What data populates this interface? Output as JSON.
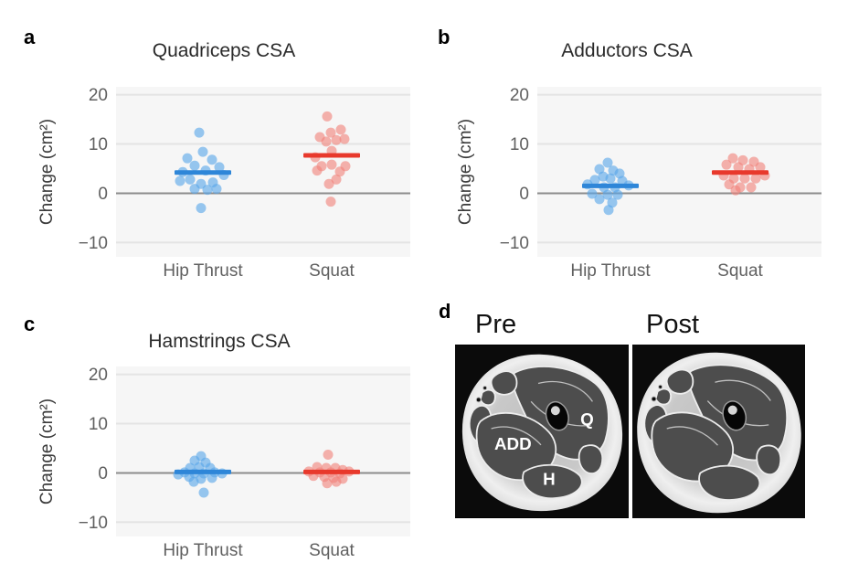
{
  "colors": {
    "hip_thrust_bar": "#2e86d8",
    "hip_thrust_point": "#58a6e8",
    "squat_bar": "#e8392c",
    "squat_point": "#f0837a",
    "panel_background": "#f6f6f6",
    "gridline": "#e4e4e4",
    "zero_line": "#8c8c8c",
    "title_text": "#2b2b2b",
    "axis_text": "#606060"
  },
  "chart_data": [
    {
      "id": "a",
      "letter": "a",
      "type": "scatter",
      "subtype": "jitter-strip-with-mean-bar",
      "title": "Quadriceps CSA",
      "ylabel": "Change (cm²)",
      "categories": [
        "Hip Thrust",
        "Squat"
      ],
      "yticks": [
        -10,
        0,
        10,
        20
      ],
      "ylim": [
        -12.9,
        21.6
      ],
      "grid": true,
      "series": [
        {
          "name": "Hip Thrust",
          "bar_color": "#2e86d8",
          "point_color": "#58a6e8",
          "mean": 4.2,
          "points": [
            [
              -4,
              12.3
            ],
            [
              0,
              8.4
            ],
            [
              -17,
              7.1
            ],
            [
              10,
              6.8
            ],
            [
              18,
              5.3
            ],
            [
              -9,
              5.6
            ],
            [
              -22,
              4.3
            ],
            [
              3,
              4.6
            ],
            [
              23,
              3.7
            ],
            [
              -14,
              2.8
            ],
            [
              11,
              2.2
            ],
            [
              -25,
              2.5
            ],
            [
              -2,
              1.9
            ],
            [
              -9,
              0.9
            ],
            [
              5,
              0.7
            ],
            [
              15,
              0.9
            ],
            [
              -2,
              -3.0
            ]
          ]
        },
        {
          "name": "Squat",
          "bar_color": "#e8392c",
          "point_color": "#f0837a",
          "mean": 7.7,
          "points": [
            [
              -5,
              15.6
            ],
            [
              10,
              12.9
            ],
            [
              -1,
              12.3
            ],
            [
              -13,
              11.4
            ],
            [
              14,
              11.0
            ],
            [
              5,
              10.8
            ],
            [
              -6,
              10.5
            ],
            [
              0,
              8.6
            ],
            [
              -18,
              7.3
            ],
            [
              0,
              5.8
            ],
            [
              -11,
              5.5
            ],
            [
              15,
              5.5
            ],
            [
              -16,
              4.6
            ],
            [
              9,
              4.4
            ],
            [
              5,
              2.8
            ],
            [
              -3,
              1.9
            ],
            [
              -1,
              -1.7
            ]
          ]
        }
      ]
    },
    {
      "id": "b",
      "letter": "b",
      "type": "scatter",
      "subtype": "jitter-strip-with-mean-bar",
      "title": "Adductors CSA",
      "ylabel": "Change (cm²)",
      "categories": [
        "Hip Thrust",
        "Squat"
      ],
      "yticks": [
        -10,
        0,
        10,
        20
      ],
      "ylim": [
        -12.9,
        21.6
      ],
      "grid": true,
      "series": [
        {
          "name": "Hip Thrust",
          "bar_color": "#2e86d8",
          "point_color": "#58a6e8",
          "mean": 1.5,
          "points": [
            [
              -3,
              6.2
            ],
            [
              -12,
              4.9
            ],
            [
              3,
              4.6
            ],
            [
              10,
              4.0
            ],
            [
              -8,
              3.4
            ],
            [
              0,
              3.0
            ],
            [
              -17,
              2.7
            ],
            [
              13,
              2.5
            ],
            [
              -25,
              1.8
            ],
            [
              20,
              1.6
            ],
            [
              -7,
              1.2
            ],
            [
              5,
              1.2
            ],
            [
              -20,
              -0.1
            ],
            [
              -3,
              -0.3
            ],
            [
              8,
              -0.3
            ],
            [
              -12,
              -1.2
            ],
            [
              2,
              -1.9
            ],
            [
              -2,
              -3.4
            ]
          ]
        },
        {
          "name": "Squat",
          "bar_color": "#e8392c",
          "point_color": "#f0837a",
          "mean": 4.2,
          "points": [
            [
              -8,
              7.1
            ],
            [
              3,
              6.7
            ],
            [
              15,
              6.4
            ],
            [
              -15,
              5.8
            ],
            [
              -2,
              5.3
            ],
            [
              22,
              5.3
            ],
            [
              10,
              4.9
            ],
            [
              -18,
              3.6
            ],
            [
              27,
              3.6
            ],
            [
              -7,
              3.0
            ],
            [
              5,
              3.0
            ],
            [
              17,
              3.0
            ],
            [
              -12,
              1.8
            ],
            [
              0,
              1.2
            ],
            [
              12,
              1.2
            ],
            [
              -5,
              0.6
            ]
          ]
        }
      ]
    },
    {
      "id": "c",
      "letter": "c",
      "type": "scatter",
      "subtype": "jitter-strip-with-mean-bar",
      "title": "Hamstrings CSA",
      "ylabel": "Change (cm²)",
      "categories": [
        "Hip Thrust",
        "Squat"
      ],
      "yticks": [
        -10,
        0,
        10,
        20
      ],
      "ylim": [
        -12.9,
        21.6
      ],
      "grid": true,
      "series": [
        {
          "name": "Hip Thrust",
          "bar_color": "#2e86d8",
          "point_color": "#58a6e8",
          "mean": 0.2,
          "points": [
            [
              -2,
              3.4
            ],
            [
              -9,
              2.5
            ],
            [
              3,
              2.1
            ],
            [
              -4,
              1.2
            ],
            [
              -14,
              1.0
            ],
            [
              8,
              1.0
            ],
            [
              -20,
              0.1
            ],
            [
              13,
              0.1
            ],
            [
              -9,
              -0.1
            ],
            [
              1,
              -0.1
            ],
            [
              21,
              -0.1
            ],
            [
              -27,
              -0.3
            ],
            [
              -15,
              -0.8
            ],
            [
              10,
              -1.0
            ],
            [
              -2,
              -1.2
            ],
            [
              -10,
              -1.8
            ],
            [
              1,
              -4.0
            ]
          ]
        },
        {
          "name": "Squat",
          "bar_color": "#e8392c",
          "point_color": "#f0837a",
          "mean": 0.2,
          "points": [
            [
              -4,
              3.7
            ],
            [
              -16,
              1.2
            ],
            [
              -6,
              1.0
            ],
            [
              4,
              1.0
            ],
            [
              12,
              0.6
            ],
            [
              -25,
              0.3
            ],
            [
              19,
              0.3
            ],
            [
              -13,
              0.1
            ],
            [
              -1,
              0.1
            ],
            [
              9,
              -0.1
            ],
            [
              -20,
              -0.6
            ],
            [
              -8,
              -0.8
            ],
            [
              2,
              -1.0
            ],
            [
              12,
              -1.2
            ],
            [
              5,
              -1.8
            ],
            [
              -5,
              -2.1
            ]
          ]
        }
      ]
    }
  ],
  "panel_d": {
    "letter": "d",
    "pre_label": "Pre",
    "post_label": "Post",
    "annotations": [
      "Q",
      "ADD",
      "H"
    ]
  }
}
